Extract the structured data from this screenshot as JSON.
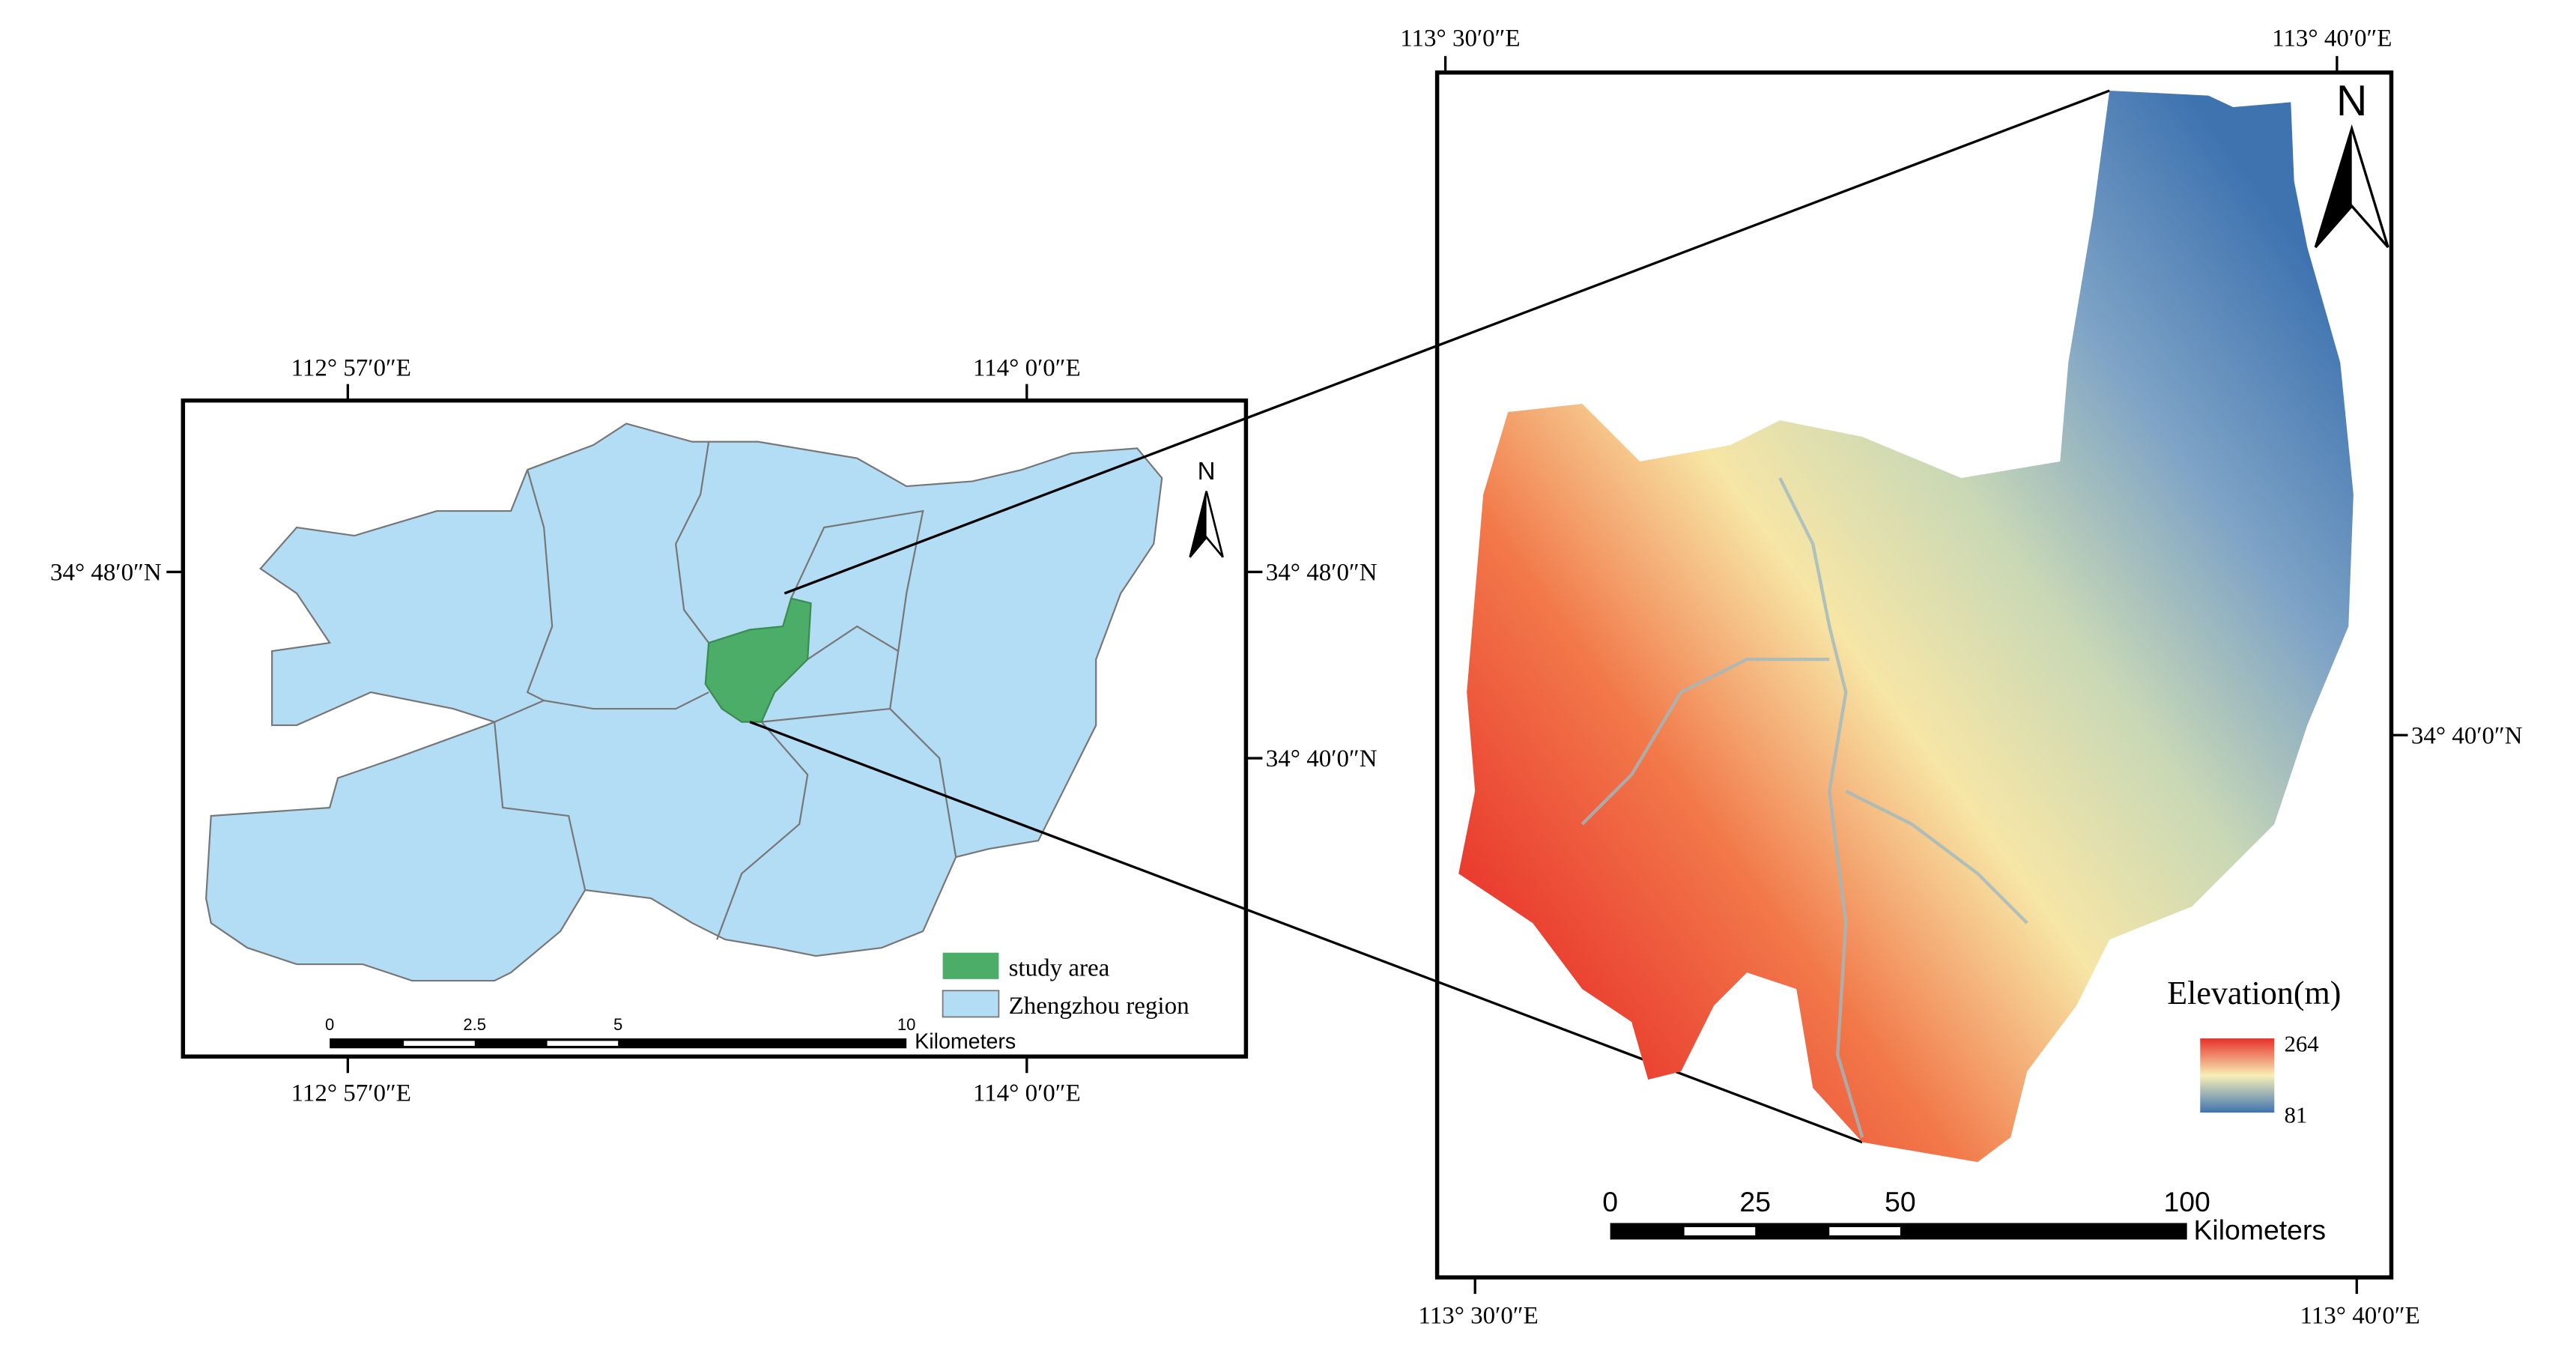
{
  "left_map": {
    "top_labels": [
      "112° 57′0″E",
      "114° 0′0″E"
    ],
    "bottom_labels": [
      "112° 57′0″E",
      "114° 0′0″E"
    ],
    "left_labels": [
      "34° 48′0″N"
    ],
    "right_labels": [
      "34° 48′0″N",
      "34° 40′0″N"
    ],
    "north": "N",
    "legend": [
      "study area",
      "Zhengzhou region"
    ],
    "scale_ticks": [
      "0",
      "2.5",
      "5",
      "10"
    ],
    "scale_unit": "Kilometers"
  },
  "right_map": {
    "top_labels": [
      "113° 30′0″E",
      "113° 40′0″E"
    ],
    "bottom_labels": [
      "113° 30′0″E",
      "113° 40′0″E"
    ],
    "right_labels": [
      "34° 40′0″N"
    ],
    "north": "N",
    "legend_title": "Elevation(m)",
    "legend_max": "264",
    "legend_min": "81",
    "scale_ticks": [
      "0",
      "25",
      "50",
      "100"
    ],
    "scale_unit": "Kilometers"
  }
}
